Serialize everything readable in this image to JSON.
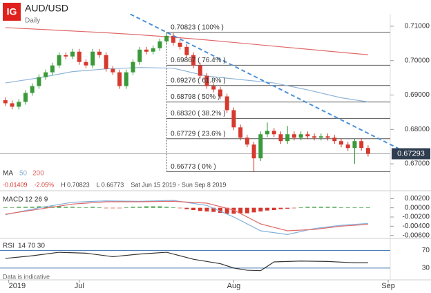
{
  "header": {
    "logo": "IG",
    "notice": "Data is indicative"
  },
  "chart_data": [
    {
      "type": "candlestick",
      "title": "AUD/USD",
      "subtitle": "Daily",
      "xlim": [
        -0.8,
        57.3
      ],
      "xticks": [
        {
          "value": 0.5,
          "label": "2019"
        },
        {
          "value": 11,
          "label": "Jul"
        },
        {
          "value": 34,
          "label": "Aug"
        },
        {
          "value": 57,
          "label": "Sep"
        }
      ],
      "ylim": [
        0.6658,
        0.7136
      ],
      "yticks": [
        {
          "value": 0.71,
          "label": "0.71000"
        },
        {
          "value": 0.7,
          "label": "0.70000"
        },
        {
          "value": 0.69,
          "label": "0.69000"
        },
        {
          "value": 0.68,
          "label": "0.68000"
        },
        {
          "value": 0.67,
          "label": "0.67000"
        }
      ],
      "up_color": "#3a9a3a",
      "down_color": "#d63a2f",
      "open": [
        0.6885,
        0.6876,
        0.6866,
        0.688,
        0.6906,
        0.6926,
        0.6952,
        0.6966,
        0.6986,
        0.7016,
        0.7012,
        0.7026,
        0.6996,
        0.6986,
        0.7026,
        0.7016,
        0.6976,
        0.6966,
        0.6926,
        0.6966,
        0.6996,
        0.7032,
        0.7026,
        0.7036,
        0.7056,
        0.7072,
        0.7052,
        0.704,
        0.7016,
        0.6986,
        0.6956,
        0.6926,
        0.6916,
        0.6896,
        0.6856,
        0.6806,
        0.6776,
        0.6756,
        0.6716,
        0.6786,
        0.6796,
        0.6786,
        0.6766,
        0.6786,
        0.6776,
        0.6786,
        0.678,
        0.6776,
        0.678,
        0.6776,
        0.6766,
        0.6756,
        0.6746,
        0.6766,
        0.6746
      ],
      "high": [
        0.6893,
        0.6884,
        0.6888,
        0.6914,
        0.6934,
        0.696,
        0.6974,
        0.6994,
        0.7024,
        0.7024,
        0.7034,
        0.7034,
        0.7004,
        0.7034,
        0.7034,
        0.7024,
        0.6984,
        0.6974,
        0.6974,
        0.7004,
        0.704,
        0.704,
        0.7044,
        0.7064,
        0.70823,
        0.708,
        0.706,
        0.7048,
        0.7024,
        0.6994,
        0.6964,
        0.6934,
        0.6924,
        0.6904,
        0.6864,
        0.6814,
        0.6784,
        0.6764,
        0.6794,
        0.682,
        0.6804,
        0.6794,
        0.681,
        0.6794,
        0.6794,
        0.6794,
        0.6788,
        0.6788,
        0.6788,
        0.6784,
        0.6774,
        0.6764,
        0.6774,
        0.6774,
        0.6754
      ],
      "low": [
        0.6868,
        0.6858,
        0.6858,
        0.6872,
        0.6898,
        0.6918,
        0.6944,
        0.6958,
        0.6978,
        0.7004,
        0.7004,
        0.6988,
        0.6978,
        0.6978,
        0.7008,
        0.6968,
        0.6958,
        0.6918,
        0.6918,
        0.6958,
        0.6988,
        0.7018,
        0.7018,
        0.7028,
        0.7048,
        0.7044,
        0.7032,
        0.7008,
        0.6978,
        0.6948,
        0.6918,
        0.6908,
        0.6888,
        0.6848,
        0.6798,
        0.6768,
        0.6748,
        0.66773,
        0.6708,
        0.6778,
        0.6778,
        0.6758,
        0.6758,
        0.6768,
        0.6768,
        0.6772,
        0.6768,
        0.6768,
        0.6768,
        0.6758,
        0.6748,
        0.6738,
        0.67,
        0.6738,
        0.6721
      ],
      "close": [
        0.6876,
        0.6866,
        0.688,
        0.6906,
        0.6926,
        0.6952,
        0.6966,
        0.6986,
        0.7016,
        0.7012,
        0.7026,
        0.6996,
        0.6986,
        0.7026,
        0.7016,
        0.6976,
        0.6966,
        0.6926,
        0.6966,
        0.6996,
        0.7032,
        0.7026,
        0.7036,
        0.7056,
        0.7072,
        0.7052,
        0.704,
        0.7016,
        0.6986,
        0.6956,
        0.6926,
        0.6916,
        0.6896,
        0.6856,
        0.6806,
        0.6776,
        0.6756,
        0.6716,
        0.6786,
        0.6796,
        0.6786,
        0.6766,
        0.6786,
        0.6776,
        0.6786,
        0.678,
        0.6776,
        0.678,
        0.6776,
        0.6766,
        0.6756,
        0.6746,
        0.6766,
        0.6746,
        0.67293
      ],
      "indicator_label": "MA",
      "series": [
        {
          "name": "50",
          "color": "#8fb4d8",
          "x": [
            0,
            5,
            10,
            15,
            20,
            25,
            30,
            35,
            40,
            45,
            50,
            54
          ],
          "values": [
            0.6935,
            0.695,
            0.6968,
            0.6976,
            0.698,
            0.6978,
            0.6955,
            0.6945,
            0.6935,
            0.6915,
            0.6892,
            0.688
          ]
        },
        {
          "name": "200",
          "color": "#e06a6a",
          "x": [
            0,
            5,
            10,
            15,
            20,
            25,
            30,
            35,
            40,
            45,
            50,
            54
          ],
          "values": [
            0.7096,
            0.7091,
            0.7086,
            0.7081,
            0.7075,
            0.7068,
            0.706,
            0.7051,
            0.7042,
            0.7033,
            0.7024,
            0.7017
          ]
        }
      ],
      "trendline": {
        "color": "#4a90d9",
        "x": [
          14,
          24,
          60
        ],
        "values": [
          0.718,
          0.70823,
          0.673
        ]
      },
      "fib_start": 24,
      "fib_levels": [
        {
          "value": 0.70823,
          "label": "0.70823 ( 100% )"
        },
        {
          "value": 0.69867,
          "label": "0.69867 ( 76.4% )"
        },
        {
          "value": 0.69276,
          "label": "0.69276 ( 61.8% )"
        },
        {
          "value": 0.68798,
          "label": "0.68798 ( 50% )"
        },
        {
          "value": 0.6832,
          "label": "0.68320 ( 38.2% )"
        },
        {
          "value": 0.67729,
          "label": "0.67729 ( 23.6% )"
        },
        {
          "value": 0.66773,
          "label": "0.66773 ( 0% )"
        }
      ],
      "current_price": 0.67293,
      "stats": [
        "-0.01409",
        "-2.05%",
        "H 0.70823",
        "L 0.66773",
        "Sat Jun 15 2019 - Sun Sep 8 2019"
      ]
    },
    {
      "type": "macd",
      "title": "MACD",
      "params": "12 26 9",
      "ylim": [
        -0.0062,
        0.0034
      ],
      "yticks": [
        {
          "value": 0.002,
          "label": "0.00200"
        },
        {
          "value": 0,
          "label": "0.00000"
        },
        {
          "value": -0.002,
          "label": "-0.00200"
        },
        {
          "value": -0.004,
          "label": "-0.00400"
        },
        {
          "value": -0.006,
          "label": "-0.00600"
        }
      ],
      "up_color": "#3a9a3a",
      "down_color": "#d63a2f",
      "histogram": [
        0.0001,
        0.0001,
        0.0002,
        0.0002,
        0.0002,
        0.0003,
        0.0003,
        0.0003,
        0.0003,
        0.0002,
        0.0002,
        0.0001,
        0.0001,
        0.0002,
        0.0001,
        -0.0001,
        -0.0001,
        -0.0001,
        0.0001,
        0.0002,
        0.0002,
        0.0003,
        0.0003,
        0.0003,
        0.0002,
        0.0001,
        -0.0001,
        -0.0003,
        -0.0005,
        -0.0007,
        -0.0008,
        -0.0009,
        -0.0011,
        -0.0013,
        -0.0013,
        -0.0012,
        -0.0012,
        -0.001,
        -0.0008,
        -0.0006,
        -0.0005,
        -0.0003,
        -0.0002,
        -0.0001,
        0.0001,
        0.0002,
        0.0002,
        0.0002,
        0.0002,
        0.0002,
        0.0001,
        0.0001,
        0.0001,
        0.0001,
        0.0001
      ],
      "series": [
        {
          "color": "#7fb0dc",
          "x": [
            0,
            5,
            10,
            15,
            20,
            25,
            30,
            34,
            38,
            42,
            46,
            50,
            54
          ],
          "values": [
            -0.0015,
            0.0,
            0.0012,
            0.0015,
            0.0014,
            0.0016,
            0.0005,
            -0.002,
            -0.005,
            -0.0058,
            -0.0045,
            -0.0038,
            -0.0034
          ]
        },
        {
          "color": "#e06a6a",
          "x": [
            0,
            5,
            10,
            15,
            20,
            25,
            30,
            34,
            38,
            42,
            46,
            50,
            54
          ],
          "values": [
            -0.0014,
            -0.0003,
            0.0008,
            0.0013,
            0.0013,
            0.0014,
            0.001,
            -0.0005,
            -0.0035,
            -0.005,
            -0.0047,
            -0.004,
            -0.0036
          ]
        }
      ]
    },
    {
      "type": "line",
      "title": "RSI",
      "params": "14 70 30",
      "ylim": [
        14,
        93
      ],
      "yticks": [
        70,
        30
      ],
      "band_color": "#4a7fb8",
      "series": [
        {
          "color": "#333333",
          "x": [
            0,
            4,
            8,
            12,
            16,
            20,
            24,
            28,
            32,
            34,
            36,
            38,
            40,
            44,
            48,
            52,
            54
          ],
          "values": [
            52,
            58,
            66,
            64,
            56,
            62,
            66,
            50,
            40,
            30,
            25,
            24,
            44,
            46,
            45,
            42,
            42
          ]
        }
      ]
    }
  ]
}
